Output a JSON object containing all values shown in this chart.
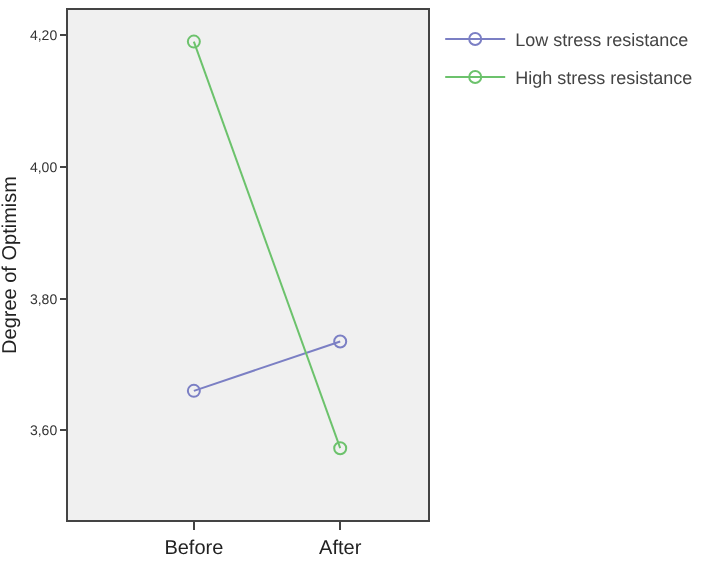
{
  "chart_data": {
    "type": "line",
    "ylabel": "Degree of Optimism",
    "categories": [
      "Before",
      "After"
    ],
    "series": [
      {
        "name": "Low stress resistance",
        "color": "#7b7fc4",
        "values": [
          3.66,
          3.735
        ]
      },
      {
        "name": "High stress resistance",
        "color": "#6cc26c",
        "values": [
          4.19,
          3.573
        ]
      }
    ],
    "ylim": [
      3.464,
      4.238
    ],
    "yticks": [
      {
        "value": 3.6,
        "label": "3,60"
      },
      {
        "value": 3.8,
        "label": "3,80"
      },
      {
        "value": 4.0,
        "label": "4,00"
      },
      {
        "value": 4.2,
        "label": "4,20"
      }
    ],
    "marker": "circle",
    "line_style": "solid",
    "legend": "top right",
    "grid": false
  }
}
